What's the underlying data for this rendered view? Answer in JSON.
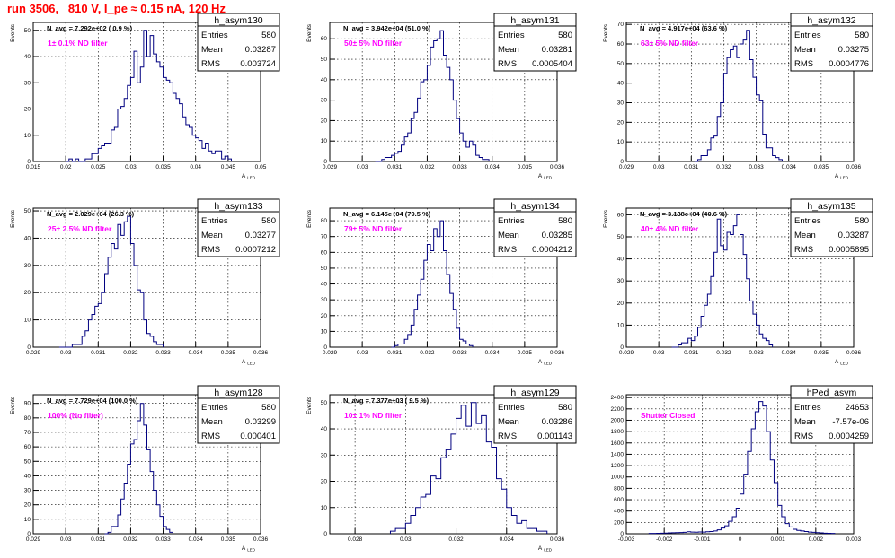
{
  "run_title": "run 3506,   810 V, I_pe ≈ 0.15 nA, 120 Hz",
  "chart_data": [
    {
      "type": "bar",
      "stats_name": "h_asym130",
      "entries": "580",
      "mean": "0.03287",
      "rms": "0.003724",
      "navg": "N_avg = 7.292e+02 ( 0.9 %)",
      "filter": "1± 0.1% ND filter",
      "ylabel": "Events",
      "xlabel": "A",
      "xlabel_sub": "LED",
      "xlim": [
        0.015,
        0.05
      ],
      "ylim": [
        0,
        53
      ],
      "xticks": [
        "0.015",
        "0.02",
        "0.025",
        "0.03",
        "0.035",
        "0.04",
        "0.045",
        "0.05"
      ],
      "yticks": [
        "0",
        "10",
        "20",
        "30",
        "40",
        "50"
      ],
      "ytick_values": [
        0,
        10,
        20,
        30,
        40,
        50
      ],
      "bin_start": 0.02,
      "bin_width": 0.0005,
      "values": [
        0,
        1,
        0,
        1,
        0,
        0,
        1,
        1,
        3,
        3,
        5,
        6,
        7,
        7,
        12,
        13,
        20,
        21,
        24,
        29,
        32,
        42,
        30,
        36,
        50,
        40,
        48,
        41,
        38,
        36,
        32,
        31,
        30,
        26,
        24,
        22,
        17,
        14,
        13,
        10,
        9,
        8,
        5,
        7,
        4,
        3,
        4,
        4,
        1,
        2,
        1
      ]
    },
    {
      "type": "bar",
      "stats_name": "h_asym131",
      "entries": "580",
      "mean": "0.03281",
      "rms": "0.0005404",
      "navg": "N_avg = 3.942e+04 (51.0 %)",
      "filter": "50± 5% ND filter",
      "ylabel": "Events",
      "xlabel": "A",
      "xlabel_sub": "LED",
      "xlim": [
        0.029,
        0.036
      ],
      "ylim": [
        0,
        68
      ],
      "xticks": [
        "0.029",
        "0.03",
        "0.031",
        "0.032",
        "0.033",
        "0.034",
        "0.035",
        "0.036"
      ],
      "yticks": [
        "0",
        "10",
        "20",
        "30",
        "40",
        "50",
        "60"
      ],
      "ytick_values": [
        0,
        10,
        20,
        30,
        40,
        50,
        60
      ],
      "bin_start": 0.0304,
      "bin_width": 0.0001,
      "values": [
        0,
        0,
        1,
        2,
        2,
        3,
        4,
        5,
        8,
        12,
        14,
        21,
        24,
        31,
        39,
        40,
        47,
        56,
        59,
        60,
        64,
        52,
        46,
        40,
        30,
        21,
        14,
        10,
        7,
        10,
        8,
        3,
        2,
        1,
        1
      ]
    },
    {
      "type": "bar",
      "stats_name": "h_asym132",
      "entries": "580",
      "mean": "0.03275",
      "rms": "0.0004776",
      "navg": "N_avg = 4.917e+04 (63.6 %)",
      "filter": "63± 5% ND filter",
      "ylabel": "Events",
      "xlabel": "A",
      "xlabel_sub": "LED",
      "xlim": [
        0.029,
        0.036
      ],
      "ylim": [
        0,
        71
      ],
      "xticks": [
        "0.029",
        "0.03",
        "0.031",
        "0.032",
        "0.033",
        "0.034",
        "0.035",
        "0.036"
      ],
      "yticks": [
        "0",
        "10",
        "20",
        "30",
        "40",
        "50",
        "60",
        "70"
      ],
      "ytick_values": [
        0,
        10,
        20,
        30,
        40,
        50,
        60,
        70
      ],
      "bin_start": 0.0311,
      "bin_width": 0.0001,
      "values": [
        0,
        1,
        3,
        3,
        6,
        12,
        13,
        23,
        30,
        45,
        53,
        57,
        59,
        53,
        60,
        62,
        67,
        52,
        43,
        34,
        31,
        14,
        7,
        7,
        3,
        2,
        1
      ]
    },
    {
      "type": "bar",
      "stats_name": "h_asym133",
      "entries": "580",
      "mean": "0.03277",
      "rms": "0.0007212",
      "navg": "N_avg = 2.029e+04 (26.3 %)",
      "filter": "25± 2.5% ND filter",
      "ylabel": "Events",
      "xlabel": "A",
      "xlabel_sub": "LED",
      "xlim": [
        0.029,
        0.036
      ],
      "ylim": [
        0,
        51
      ],
      "xticks": [
        "0.029",
        "0.03",
        "0.031",
        "0.032",
        "0.033",
        "0.034",
        "0.035",
        "0.036"
      ],
      "yticks": [
        "0",
        "10",
        "20",
        "30",
        "40",
        "50"
      ],
      "ytick_values": [
        0,
        10,
        20,
        30,
        40,
        50
      ],
      "bin_start": 0.0298,
      "bin_width": 0.0001,
      "values": [
        0,
        0,
        0,
        0,
        1,
        1,
        1,
        4,
        6,
        10,
        12,
        15,
        16,
        20,
        27,
        33,
        38,
        36,
        45,
        41,
        46,
        48,
        38,
        30,
        21,
        20,
        10,
        5,
        4,
        2,
        1,
        1
      ]
    },
    {
      "type": "bar",
      "stats_name": "h_asym134",
      "entries": "580",
      "mean": "0.03285",
      "rms": "0.0004212",
      "navg": "N_avg = 6.145e+04 (79.5 %)",
      "filter": "79± 5% ND filter",
      "ylabel": "Events",
      "xlabel": "A",
      "xlabel_sub": "LED",
      "xlim": [
        0.029,
        0.036
      ],
      "ylim": [
        0,
        88
      ],
      "xticks": [
        "0.029",
        "0.03",
        "0.031",
        "0.032",
        "0.033",
        "0.034",
        "0.035",
        "0.036"
      ],
      "yticks": [
        "0",
        "10",
        "20",
        "30",
        "40",
        "50",
        "60",
        "70",
        "80"
      ],
      "ytick_values": [
        0,
        10,
        20,
        30,
        40,
        50,
        60,
        70,
        80
      ],
      "bin_start": 0.0309,
      "bin_width": 0.0001,
      "values": [
        0,
        1,
        2,
        2,
        5,
        8,
        14,
        24,
        33,
        43,
        55,
        65,
        61,
        75,
        70,
        80,
        61,
        46,
        34,
        24,
        12,
        5,
        4,
        2,
        1
      ]
    },
    {
      "type": "bar",
      "stats_name": "h_asym135",
      "entries": "580",
      "mean": "0.03287",
      "rms": "0.0005895",
      "navg": "N_avg = 3.138e+04 (40.6 %)",
      "filter": "40± 4% ND filter",
      "ylabel": "Events",
      "xlabel": "A",
      "xlabel_sub": "LED",
      "xlim": [
        0.029,
        0.036
      ],
      "ylim": [
        0,
        63
      ],
      "xticks": [
        "0.029",
        "0.03",
        "0.031",
        "0.032",
        "0.033",
        "0.034",
        "0.035",
        "0.036"
      ],
      "yticks": [
        "0",
        "10",
        "20",
        "30",
        "40",
        "50",
        "60"
      ],
      "ytick_values": [
        0,
        10,
        20,
        30,
        40,
        50,
        60
      ],
      "bin_start": 0.0304,
      "bin_width": 0.0001,
      "values": [
        0,
        0,
        1,
        2,
        2,
        4,
        3,
        5,
        9,
        14,
        19,
        24,
        32,
        43,
        58,
        46,
        44,
        52,
        51,
        55,
        60,
        51,
        42,
        31,
        21,
        15,
        10,
        6,
        4,
        3,
        1
      ]
    },
    {
      "type": "bar",
      "stats_name": "h_asym128",
      "entries": "580",
      "mean": "0.03299",
      "rms": "0.000401",
      "navg": "N_avg = 7.729e+04 (100.0 %)",
      "filter": "100% (No filter)",
      "ylabel": "Events",
      "xlabel": "A",
      "xlabel_sub": "LED",
      "xlim": [
        0.029,
        0.036
      ],
      "ylim": [
        0,
        96
      ],
      "xticks": [
        "0.029",
        "0.03",
        "0.031",
        "0.032",
        "0.033",
        "0.034",
        "0.035",
        "0.036"
      ],
      "yticks": [
        "0",
        "10",
        "20",
        "30",
        "40",
        "50",
        "60",
        "70",
        "80",
        "90"
      ],
      "ytick_values": [
        0,
        10,
        20,
        30,
        40,
        50,
        60,
        70,
        80,
        90
      ],
      "bin_start": 0.0312,
      "bin_width": 0.0001,
      "values": [
        0,
        1,
        5,
        5,
        13,
        24,
        35,
        48,
        62,
        65,
        78,
        90,
        75,
        58,
        43,
        30,
        20,
        12,
        5,
        3,
        1
      ]
    },
    {
      "type": "bar",
      "stats_name": "h_asym129",
      "entries": "580",
      "mean": "0.03286",
      "rms": "0.001143",
      "navg": "N_avg = 7.377e+03 ( 9.5 %)",
      "filter": "10± 1% ND filter",
      "ylabel": "Events",
      "xlabel": "A",
      "xlabel_sub": "LED",
      "xlim": [
        0.027,
        0.036
      ],
      "ylim": [
        0,
        53
      ],
      "xticks": [
        "0.028",
        "0.03",
        "0.032",
        "0.034",
        "0.036"
      ],
      "xtick_values": [
        0.028,
        0.03,
        0.032,
        0.034,
        0.036
      ],
      "yticks": [
        "0",
        "10",
        "20",
        "30",
        "40",
        "50"
      ],
      "ytick_values": [
        0,
        10,
        20,
        30,
        40,
        50
      ],
      "bin_start": 0.0294,
      "bin_width": 0.0002,
      "values": [
        1,
        2,
        2,
        4,
        7,
        10,
        14,
        15,
        22,
        21,
        29,
        32,
        38,
        44,
        49,
        41,
        50,
        42,
        45,
        35,
        33,
        21,
        17,
        10,
        7,
        4,
        5,
        2,
        2,
        1,
        1
      ]
    },
    {
      "type": "bar",
      "stats_name": "hPed_asym",
      "entries": "24653",
      "mean": "-7.57e-06",
      "rms": "0.0004259",
      "navg": "",
      "filter": "Shutter Closed",
      "ylabel": "",
      "xlabel": "",
      "xlabel_sub": "",
      "xlim": [
        -0.003,
        0.003
      ],
      "ylim": [
        0,
        2450
      ],
      "xticks": [
        "-0.003",
        "-0.002",
        "-0.001",
        "0",
        "0.001",
        "0.002",
        "0.003"
      ],
      "yticks": [
        "0",
        "200",
        "400",
        "600",
        "800",
        "1000",
        "1200",
        "1400",
        "1600",
        "1800",
        "2000",
        "2200",
        "2400"
      ],
      "ytick_values": [
        0,
        200,
        400,
        600,
        800,
        1000,
        1200,
        1400,
        1600,
        1800,
        2000,
        2200,
        2400
      ],
      "bin_start": -0.0024,
      "bin_width": 0.0001,
      "values": [
        5,
        5,
        8,
        10,
        12,
        15,
        18,
        20,
        22,
        25,
        35,
        30,
        28,
        32,
        30,
        35,
        40,
        50,
        70,
        100,
        140,
        220,
        300,
        450,
        700,
        1050,
        1450,
        1850,
        2150,
        2330,
        2250,
        1800,
        1300,
        900,
        500,
        300,
        180,
        120,
        80,
        60,
        50,
        40,
        30,
        25,
        20,
        15,
        10,
        8,
        5
      ]
    }
  ]
}
